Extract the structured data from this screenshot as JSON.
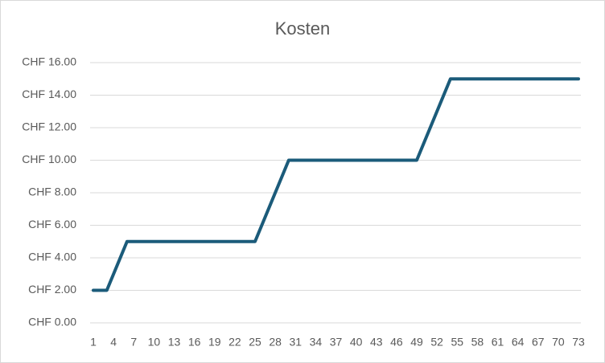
{
  "chart_data": {
    "type": "line",
    "title": "Kosten",
    "categories": [
      1,
      null,
      null,
      4,
      null,
      null,
      7,
      null,
      null,
      10,
      null,
      null,
      13,
      null,
      null,
      16,
      null,
      null,
      19,
      null,
      null,
      22,
      null,
      null,
      25,
      null,
      null,
      28,
      null,
      null,
      31,
      null,
      null,
      34,
      null,
      null,
      37,
      null,
      null,
      40,
      null,
      null,
      43,
      null,
      null,
      46,
      null,
      null,
      49,
      null,
      null,
      52,
      null,
      null,
      55,
      null,
      null,
      58,
      null,
      null,
      61,
      null,
      null,
      64,
      null,
      null,
      67,
      null,
      null,
      70,
      null,
      null,
      73
    ],
    "values": [
      2,
      2,
      2,
      3,
      4,
      5,
      5,
      5,
      5,
      5,
      5,
      5,
      5,
      5,
      5,
      5,
      5,
      5,
      5,
      5,
      5,
      5,
      5,
      5,
      5,
      6,
      7,
      8,
      9,
      10,
      10,
      10,
      10,
      10,
      10,
      10,
      10,
      10,
      10,
      10,
      10,
      10,
      10,
      10,
      10,
      10,
      10,
      10,
      10,
      11,
      12,
      13,
      14,
      15,
      15,
      15,
      15,
      15,
      15,
      15,
      15,
      15,
      15,
      15,
      15,
      15,
      15,
      15,
      15,
      15,
      15,
      15,
      15
    ],
    "color": "#1b5b7a",
    "ylim": [
      0,
      16
    ],
    "yticks": [
      {
        "value": 0,
        "label": "CHF 0.00"
      },
      {
        "value": 2,
        "label": "CHF 2.00"
      },
      {
        "value": 4,
        "label": "CHF 4.00"
      },
      {
        "value": 6,
        "label": "CHF 6.00"
      },
      {
        "value": 8,
        "label": "CHF 8.00"
      },
      {
        "value": 10,
        "label": "CHF 10.00"
      },
      {
        "value": 12,
        "label": "CHF 12.00"
      },
      {
        "value": 14,
        "label": "CHF 14.00"
      },
      {
        "value": 16,
        "label": "CHF 16.00"
      }
    ],
    "grid": true
  }
}
